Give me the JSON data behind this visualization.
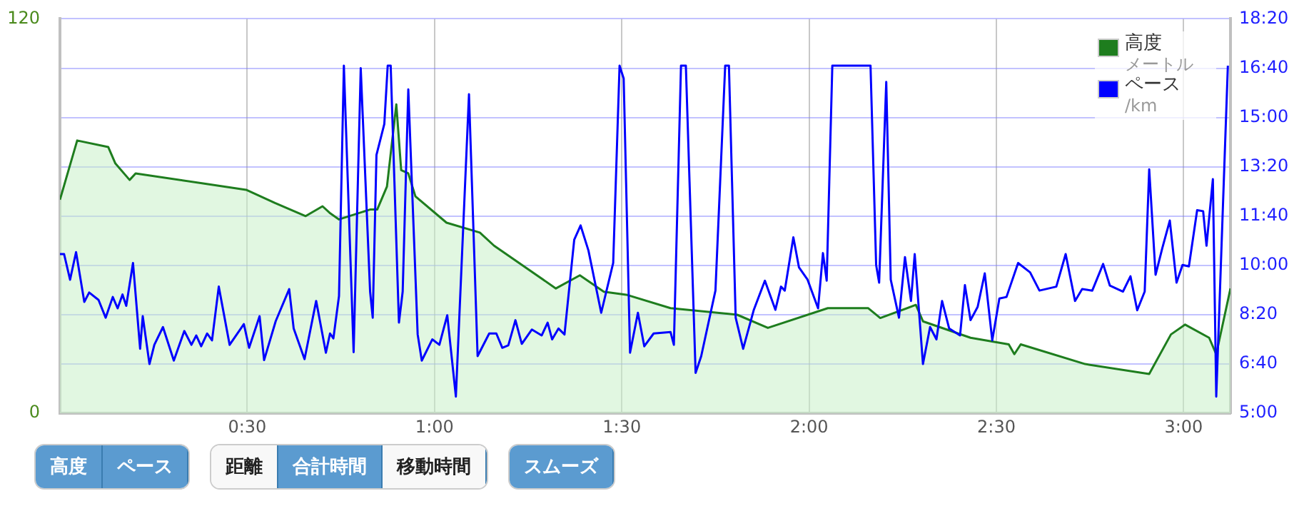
{
  "chart_data": {
    "type": "line",
    "xlim": [
      0,
      3.125
    ],
    "xticks": [
      {
        "value": 0.5,
        "label": "0:30"
      },
      {
        "value": 1,
        "label": "1:00"
      },
      {
        "value": 1.5,
        "label": "1:30"
      },
      {
        "value": 2,
        "label": "2:00"
      },
      {
        "value": 2.5,
        "label": "2:30"
      },
      {
        "value": 3,
        "label": "3:00"
      }
    ],
    "ylim": [
      0,
      120
    ],
    "yticks": [
      0,
      120
    ],
    "y2lim": [
      300,
      1100
    ],
    "y2ticks": [
      {
        "value": 300,
        "label": "5:00"
      },
      {
        "value": 400,
        "label": "6:40"
      },
      {
        "value": 500,
        "label": "8:20"
      },
      {
        "value": 600,
        "label": "10:00"
      },
      {
        "value": 700,
        "label": "11:40"
      },
      {
        "value": 800,
        "label": "13:20"
      },
      {
        "value": 900,
        "label": "15:00"
      },
      {
        "value": 1000,
        "label": "16:40"
      },
      {
        "value": 1100,
        "label": "18:20"
      }
    ],
    "grid": true,
    "legend": "top right",
    "annotations": [
      "高度",
      "ペース",
      "距離",
      "合計時間",
      "移動時間",
      "スムーズ",
      "メートル",
      "/km"
    ],
    "series": [
      {
        "name": "高度",
        "type": "area",
        "color": "#1e7d1e",
        "x": [
          0,
          0.046,
          0.129,
          0.148,
          0.186,
          0.202,
          0.497,
          0.574,
          0.656,
          0.701,
          0.72,
          0.745,
          0.828,
          0.847,
          0.873,
          0.898,
          0.911,
          0.93,
          0.949,
          1.032,
          1.121,
          1.159,
          1.324,
          1.388,
          1.452,
          1.515,
          1.63,
          1.808,
          1.89,
          2.05,
          2.158,
          2.19,
          2.285,
          2.304,
          2.431,
          2.533,
          2.548,
          2.565,
          2.737,
          2.908,
          2.966,
          3.004,
          3.068,
          3.087,
          3.125
        ],
        "values": [
          65,
          83,
          81,
          76,
          71,
          73,
          68,
          64,
          60,
          63,
          61,
          59,
          62,
          62,
          69,
          94,
          74,
          73,
          66,
          58,
          55,
          51,
          38,
          42,
          37,
          36,
          32,
          30,
          26,
          32,
          32,
          29,
          33,
          28,
          23,
          21,
          18,
          21,
          15,
          12,
          24,
          27,
          23,
          18,
          38
        ]
      },
      {
        "name": "ペース",
        "type": "line",
        "axis": "y2",
        "color": "#0000ff",
        "x": [
          0,
          0.011,
          0.027,
          0.043,
          0.065,
          0.078,
          0.103,
          0.122,
          0.141,
          0.154,
          0.167,
          0.177,
          0.195,
          0.214,
          0.221,
          0.239,
          0.252,
          0.275,
          0.304,
          0.332,
          0.351,
          0.364,
          0.377,
          0.393,
          0.406,
          0.424,
          0.453,
          0.491,
          0.505,
          0.533,
          0.545,
          0.576,
          0.612,
          0.624,
          0.653,
          0.684,
          0.71,
          0.721,
          0.73,
          0.745,
          0.758,
          0.784,
          0.803,
          0.828,
          0.835,
          0.845,
          0.866,
          0.875,
          0.883,
          0.905,
          0.915,
          0.93,
          0.955,
          0.966,
          0.994,
          1.013,
          1.034,
          1.057,
          1.092,
          1.115,
          1.146,
          1.165,
          1.181,
          1.197,
          1.216,
          1.233,
          1.26,
          1.286,
          1.302,
          1.314,
          1.331,
          1.347,
          1.373,
          1.39,
          1.411,
          1.445,
          1.477,
          1.494,
          1.505,
          1.522,
          1.543,
          1.56,
          1.585,
          1.63,
          1.639,
          1.658,
          1.671,
          1.697,
          1.712,
          1.75,
          1.776,
          1.786,
          1.804,
          1.824,
          1.852,
          1.882,
          1.91,
          1.925,
          1.935,
          1.958,
          1.973,
          1.996,
          2.024,
          2.037,
          2.047,
          2.062,
          2.164,
          2.179,
          2.187,
          2.206,
          2.218,
          2.24,
          2.256,
          2.272,
          2.282,
          2.304,
          2.323,
          2.34,
          2.355,
          2.374,
          2.403,
          2.416,
          2.431,
          2.45,
          2.469,
          2.489,
          2.508,
          2.527,
          2.558,
          2.59,
          2.615,
          2.66,
          2.685,
          2.71,
          2.729,
          2.756,
          2.785,
          2.803,
          2.838,
          2.858,
          2.876,
          2.896,
          2.908,
          2.925,
          2.943,
          2.963,
          2.981,
          2.997,
          3.014,
          3.036,
          3.052,
          3.061,
          3.078,
          3.087,
          3.118
        ],
        "values": [
          623,
          623,
          571,
          627,
          526,
          545,
          530,
          494,
          536,
          513,
          541,
          518,
          605,
          431,
          497,
          400,
          439,
          475,
          407,
          467,
          439,
          458,
          436,
          462,
          448,
          557,
          439,
          481,
          433,
          497,
          408,
          487,
          552,
          472,
          410,
          528,
          423,
          462,
          452,
          538,
          1005,
          424,
          1000,
          547,
          494,
          824,
          887,
          1005,
          1005,
          484,
          547,
          957,
          460,
          407,
          450,
          439,
          499,
          334,
          947,
          416,
          462,
          462,
          433,
          438,
          489,
          441,
          470,
          458,
          484,
          450,
          472,
          460,
          652,
          681,
          630,
          504,
          605,
          1005,
          979,
          423,
          504,
          436,
          462,
          465,
          439,
          1005,
          1005,
          382,
          416,
          549,
          1005,
          1005,
          494,
          431,
          509,
          569,
          510,
          557,
          549,
          657,
          596,
          571,
          513,
          625,
          569,
          1005,
          1005,
          601,
          565,
          972,
          571,
          494,
          617,
          528,
          623,
          400,
          475,
          450,
          528,
          472,
          458,
          560,
          489,
          516,
          584,
          448,
          533,
          536,
          605,
          586,
          549,
          557,
          623,
          528,
          552,
          549,
          603,
          559,
          547,
          578,
          509,
          547,
          795,
          581,
          635,
          691,
          565,
          601,
          598,
          712,
          710,
          640,
          775,
          334,
          1005
        ]
      }
    ]
  }
}
